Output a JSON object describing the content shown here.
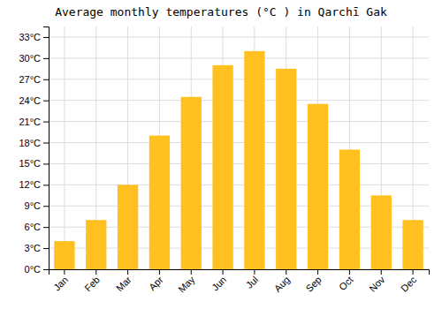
{
  "chart_data": {
    "type": "bar",
    "title": "Average monthly temperatures (°C ) in Qarchī Gak",
    "categories": [
      "Jan",
      "Feb",
      "Mar",
      "Apr",
      "May",
      "Jun",
      "Jul",
      "Aug",
      "Sep",
      "Oct",
      "Nov",
      "Dec"
    ],
    "values": [
      4,
      7,
      12,
      19,
      24.5,
      29,
      31,
      28.5,
      23.5,
      17,
      10.5,
      7
    ],
    "color": "#FFC020",
    "ylim": [
      0,
      34.5
    ],
    "yticks": [
      {
        "value": 0,
        "label": "0°C"
      },
      {
        "value": 3,
        "label": "3°C"
      },
      {
        "value": 6,
        "label": "6°C"
      },
      {
        "value": 9,
        "label": "9°C"
      },
      {
        "value": 12,
        "label": "12°C"
      },
      {
        "value": 15,
        "label": "15°C"
      },
      {
        "value": 18,
        "label": "18°C"
      },
      {
        "value": 21,
        "label": "21°C"
      },
      {
        "value": 24,
        "label": "24°C"
      },
      {
        "value": 27,
        "label": "27°C"
      },
      {
        "value": 30,
        "label": "30°C"
      },
      {
        "value": 33,
        "label": "33°C"
      }
    ],
    "grid": true
  }
}
